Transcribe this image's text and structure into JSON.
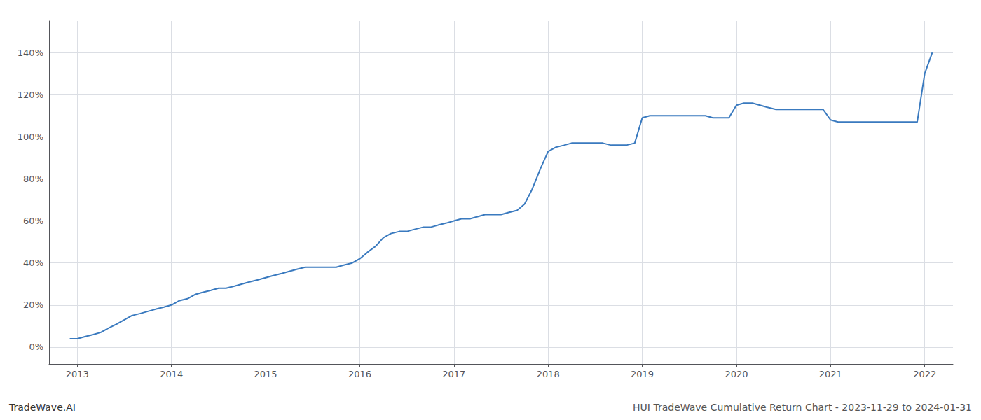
{
  "chart_data": {
    "type": "line",
    "title": "HUI TradeWave Cumulative Return Chart - 2023-11-29 to 2024-01-31",
    "annotations": [
      "TradeWave.AI"
    ],
    "color": "#3a7abf",
    "grid": true,
    "x": [
      2012.92,
      2013.0,
      2013.08,
      2013.17,
      2013.25,
      2013.33,
      2013.42,
      2013.5,
      2013.58,
      2013.67,
      2013.75,
      2013.83,
      2013.92,
      2014.0,
      2014.08,
      2014.17,
      2014.25,
      2014.33,
      2014.42,
      2014.5,
      2014.58,
      2014.67,
      2014.75,
      2014.83,
      2014.92,
      2015.0,
      2015.08,
      2015.17,
      2015.25,
      2015.33,
      2015.42,
      2015.5,
      2015.58,
      2015.67,
      2015.75,
      2015.83,
      2015.92,
      2016.0,
      2016.08,
      2016.17,
      2016.25,
      2016.33,
      2016.42,
      2016.5,
      2016.58,
      2016.67,
      2016.75,
      2016.83,
      2016.92,
      2017.0,
      2017.08,
      2017.17,
      2017.25,
      2017.33,
      2017.42,
      2017.5,
      2017.58,
      2017.67,
      2017.75,
      2017.83,
      2017.92,
      2018.0,
      2018.08,
      2018.17,
      2018.25,
      2018.33,
      2018.42,
      2018.5,
      2018.58,
      2018.67,
      2018.75,
      2018.83,
      2018.92,
      2019.0,
      2019.08,
      2019.17,
      2019.25,
      2019.33,
      2019.42,
      2019.5,
      2019.58,
      2019.67,
      2019.75,
      2019.83,
      2019.92,
      2020.0,
      2020.08,
      2020.17,
      2020.25,
      2020.33,
      2020.42,
      2020.5,
      2020.58,
      2020.67,
      2020.75,
      2020.83,
      2020.92,
      2021.0,
      2021.08,
      2021.17,
      2021.25,
      2021.33,
      2021.42,
      2021.5,
      2021.58,
      2021.67,
      2021.75,
      2021.83,
      2021.92,
      2022.0,
      2022.08
    ],
    "values": [
      4,
      4,
      5,
      6,
      7,
      9,
      11,
      13,
      15,
      16,
      17,
      18,
      19,
      20,
      22,
      23,
      25,
      26,
      27,
      28,
      28,
      29,
      30,
      31,
      32,
      33,
      34,
      35,
      36,
      37,
      38,
      38,
      38,
      38,
      38,
      39,
      40,
      42,
      45,
      48,
      52,
      54,
      55,
      55,
      56,
      57,
      57,
      58,
      59,
      60,
      61,
      61,
      62,
      63,
      63,
      63,
      64,
      65,
      68,
      75,
      85,
      93,
      95,
      96,
      97,
      97,
      97,
      97,
      97,
      96,
      96,
      96,
      97,
      109,
      110,
      110,
      110,
      110,
      110,
      110,
      110,
      110,
      109,
      109,
      109,
      115,
      116,
      116,
      115,
      114,
      113,
      113,
      113,
      113,
      113,
      113,
      113,
      108,
      107,
      107,
      107,
      107,
      107,
      107,
      107,
      107,
      107,
      107,
      107,
      130,
      140
    ],
    "xlim": [
      2012.7,
      2022.3
    ],
    "xticks": [
      2013,
      2014,
      2015,
      2016,
      2017,
      2018,
      2019,
      2020,
      2021,
      2022
    ],
    "ylim": [
      -8,
      155
    ],
    "yticks": [
      {
        "value": 0,
        "label": "0%"
      },
      {
        "value": 20,
        "label": "20%"
      },
      {
        "value": 40,
        "label": "40%"
      },
      {
        "value": 60,
        "label": "60%"
      },
      {
        "value": 80,
        "label": "80%"
      },
      {
        "value": 100,
        "label": "100%"
      },
      {
        "value": 120,
        "label": "120%"
      },
      {
        "value": 140,
        "label": "140%"
      }
    ]
  }
}
